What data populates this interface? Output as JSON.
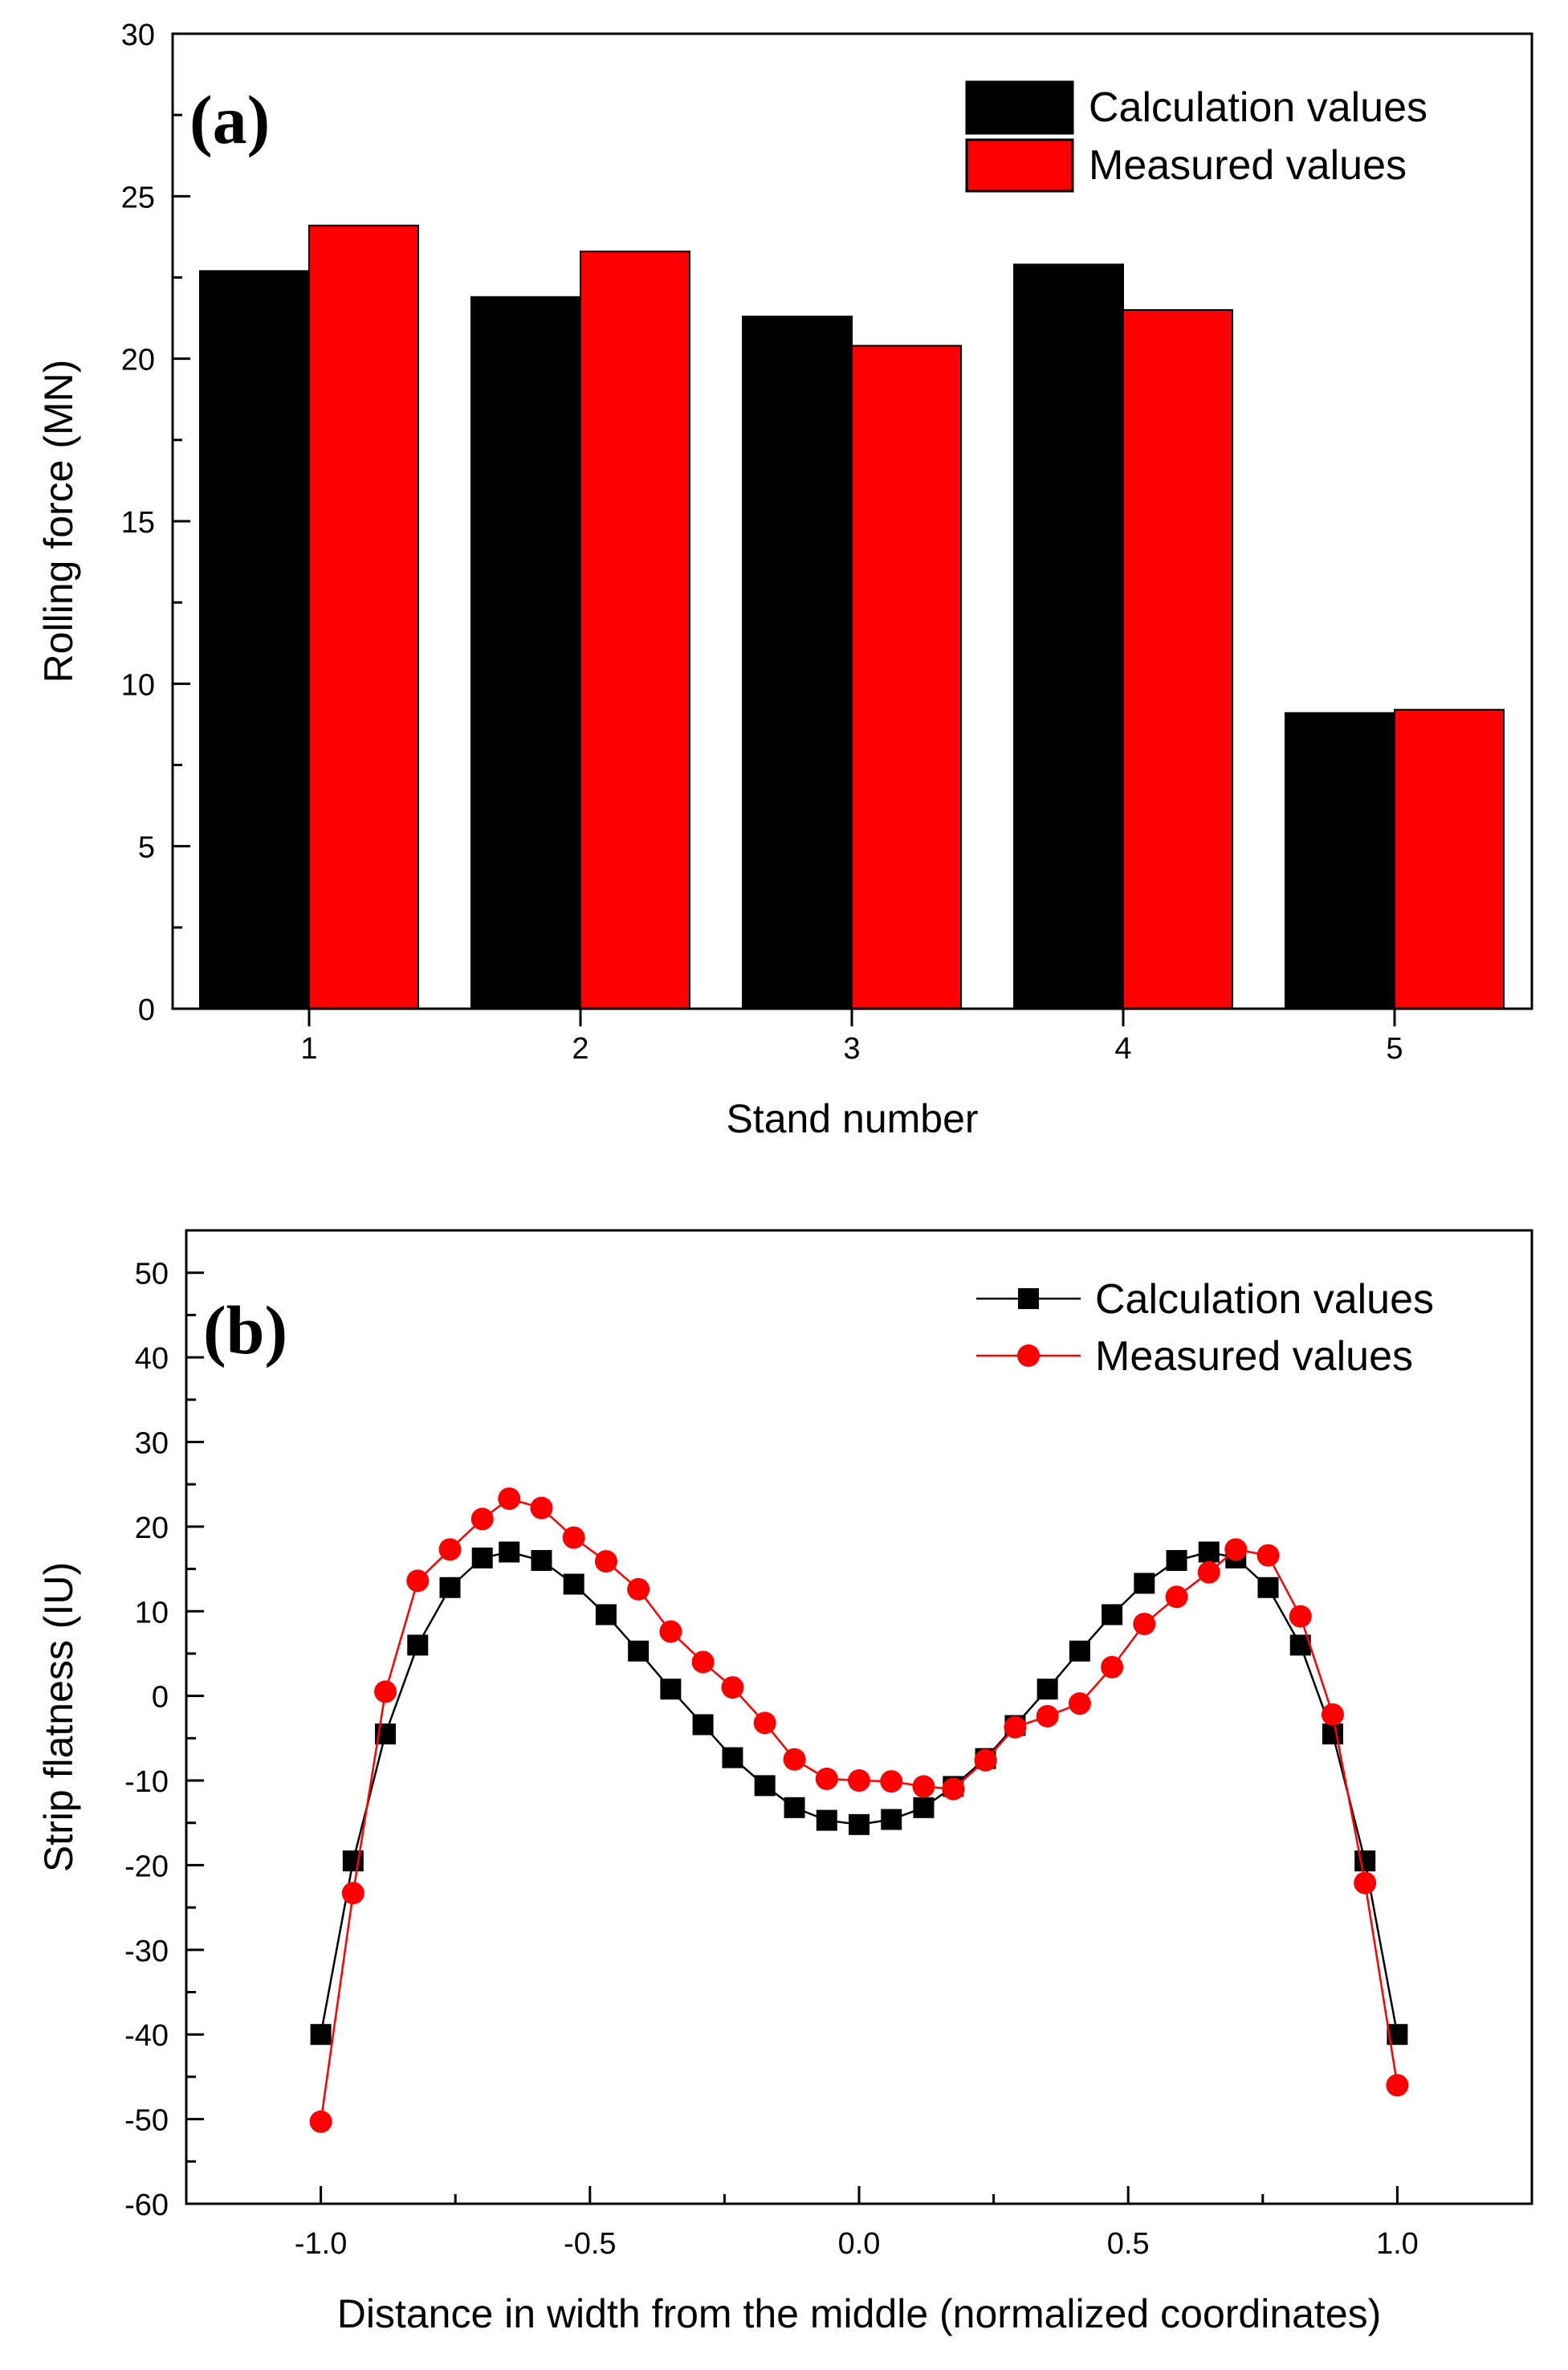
{
  "chart_data": [
    {
      "type": "bar",
      "panel_label": "(a)",
      "title": "",
      "xlabel": "Stand number",
      "ylabel": "Rolling force (MN)",
      "categories": [
        "1",
        "2",
        "3",
        "4",
        "5"
      ],
      "ylim": [
        0,
        30
      ],
      "yticks": [
        0,
        5,
        10,
        15,
        20,
        25,
        30
      ],
      "yticks_text": [
        "0",
        "5",
        "10",
        "15",
        "20",
        "25",
        "30"
      ],
      "series": [
        {
          "name": "Calculation values",
          "color": "#000000",
          "values": [
            22.7,
            21.9,
            21.3,
            22.9,
            9.1
          ]
        },
        {
          "name": "Measured values",
          "color": "#ff0000",
          "values": [
            24.1,
            23.3,
            20.4,
            21.5,
            9.2
          ]
        }
      ],
      "grid": false,
      "legend": "top-right"
    },
    {
      "type": "line",
      "panel_label": "(b)",
      "title": "",
      "xlabel": "Distance in width from the middle (normalized coordinates)",
      "ylabel": "Strip flatness (IU)",
      "xlim": [
        -1.25,
        1.25
      ],
      "ylim": [
        -60,
        55
      ],
      "xticks": [
        -1.0,
        -0.5,
        0.0,
        0.5,
        1.0
      ],
      "xticks_text": [
        "-1.0",
        "-0.5",
        "0.0",
        "0.5",
        "1.0"
      ],
      "yticks": [
        -60,
        -50,
        -40,
        -30,
        -20,
        -10,
        0,
        10,
        20,
        30,
        40,
        50
      ],
      "yticks_text": [
        "-60",
        "-50",
        "-40",
        "-30",
        "-20",
        "-10",
        "0",
        "10",
        "20",
        "30",
        "40",
        "50"
      ],
      "x": [
        -1.0,
        -0.94,
        -0.88,
        -0.82,
        -0.76,
        -0.7,
        -0.65,
        -0.59,
        -0.53,
        -0.47,
        -0.41,
        -0.35,
        -0.29,
        -0.235,
        -0.175,
        -0.12,
        -0.06,
        0.0,
        0.06,
        0.12,
        0.175,
        0.235,
        0.29,
        0.35,
        0.41,
        0.47,
        0.53,
        0.59,
        0.65,
        0.7,
        0.76,
        0.82,
        0.88,
        0.94,
        1.0
      ],
      "series": [
        {
          "name": "Calculation values",
          "color": "#000000",
          "marker": "square",
          "values": [
            -40,
            -19.5,
            -4.5,
            6,
            12.8,
            16.3,
            17,
            16,
            13.2,
            9.6,
            5.3,
            0.8,
            -3.4,
            -7.3,
            -10.6,
            -13.2,
            -14.7,
            -15.2,
            -14.6,
            -13.2,
            -10.7,
            -7.4,
            -3.5,
            0.8,
            5.3,
            9.6,
            13.3,
            16,
            17,
            16.3,
            12.8,
            6,
            -4.5,
            -19.5,
            -40
          ]
        },
        {
          "name": "Measured values",
          "color": "#ff0000",
          "marker": "circle",
          "values": [
            -50.3,
            -23.3,
            0.5,
            13.6,
            17.3,
            20.9,
            23.3,
            22.2,
            18.7,
            15.9,
            12.6,
            7.6,
            4,
            1,
            -3.2,
            -7.5,
            -9.8,
            -10,
            -10.1,
            -10.7,
            -11,
            -7.6,
            -3.7,
            -2.4,
            -0.9,
            3.4,
            8.5,
            11.7,
            14.6,
            17.3,
            16.6,
            9.4,
            -2.2,
            -22.1,
            -46
          ]
        }
      ],
      "grid": false,
      "legend": "top-right"
    }
  ]
}
